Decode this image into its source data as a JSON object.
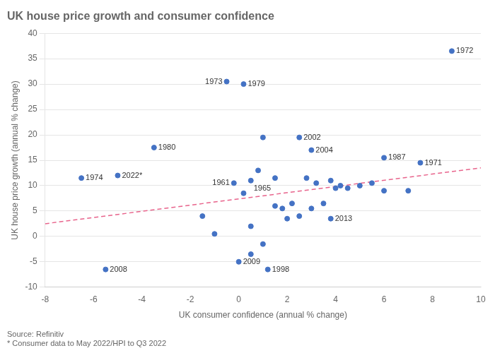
{
  "chart_data": {
    "type": "scatter",
    "title": "UK house price growth and consumer confidence",
    "x_label": "UK consumer confidence (annual % change)",
    "y_label": "UK house price growth (annual % change)",
    "source": "Source: Refinitiv",
    "footnote": "* Consumer data to May 2022/HPI to Q3 2022",
    "xlim": [
      -8,
      10
    ],
    "ylim": [
      -10,
      40
    ],
    "xticks": [
      -8,
      -6,
      -4,
      -2,
      0,
      2,
      4,
      6,
      8,
      10
    ],
    "yticks": [
      -10,
      -5,
      0,
      5,
      10,
      15,
      20,
      25,
      30,
      35,
      40
    ],
    "grid": "y",
    "series": [
      {
        "type": "scatter",
        "color": "#4472C4",
        "x": [
          8.8,
          -0.5,
          -6.5,
          7.5,
          0.2,
          -3.5,
          6.0,
          1.2,
          2.5,
          3.0,
          -5.5,
          0.0,
          3.8,
          -0.2,
          0.5,
          -5.0,
          1.0,
          0.2,
          0.5,
          -1.0,
          1.5,
          1.8,
          2.0,
          2.2,
          2.5,
          3.0,
          3.2,
          3.5,
          3.8,
          4.0,
          4.2,
          4.5,
          5.0,
          5.5,
          6.0,
          7.0,
          1.0,
          0.8,
          1.5,
          2.8,
          0.5,
          -1.5
        ],
        "values": [
          36.5,
          30.5,
          11.5,
          14.5,
          30.0,
          17.5,
          15.5,
          -6.5,
          19.5,
          17.0,
          -6.5,
          -5.0,
          3.5,
          10.5,
          11.0,
          12.0,
          19.5,
          8.5,
          2.0,
          0.5,
          6.0,
          5.5,
          3.5,
          6.5,
          4.0,
          5.5,
          10.5,
          6.5,
          11.0,
          9.5,
          10.0,
          9.5,
          10.0,
          10.5,
          9.0,
          9.0,
          -1.5,
          13.0,
          11.5,
          11.5,
          -3.5,
          4.0
        ]
      },
      {
        "type": "line",
        "color": "#E8648C",
        "line_style": "dashed",
        "x": [
          -8,
          10
        ],
        "values": [
          2.5,
          13.5
        ]
      }
    ],
    "annotations": [
      {
        "text": "1972",
        "x": 8.8,
        "y": 36.5
      },
      {
        "text": "1973",
        "x": -0.5,
        "y": 30.5
      },
      {
        "text": "1974",
        "x": -6.5,
        "y": 11.5
      },
      {
        "text": "1971",
        "x": 7.5,
        "y": 14.5
      },
      {
        "text": "1979",
        "x": 0.2,
        "y": 30.0
      },
      {
        "text": "1980",
        "x": -3.5,
        "y": 17.5
      },
      {
        "text": "1987",
        "x": 6.0,
        "y": 15.5
      },
      {
        "text": "1998",
        "x": 1.2,
        "y": -6.5
      },
      {
        "text": "2002",
        "x": 2.5,
        "y": 19.5
      },
      {
        "text": "2004",
        "x": 3.0,
        "y": 17.0
      },
      {
        "text": "2008",
        "x": -5.5,
        "y": -6.5
      },
      {
        "text": "2009",
        "x": 0.0,
        "y": -5.0
      },
      {
        "text": "2013",
        "x": 3.8,
        "y": 3.5
      },
      {
        "text": "1961",
        "x": -0.2,
        "y": 10.5
      },
      {
        "text": "1965",
        "x": 0.5,
        "y": 11.0
      },
      {
        "text": "2022*",
        "x": -5.0,
        "y": 12.0
      }
    ]
  }
}
